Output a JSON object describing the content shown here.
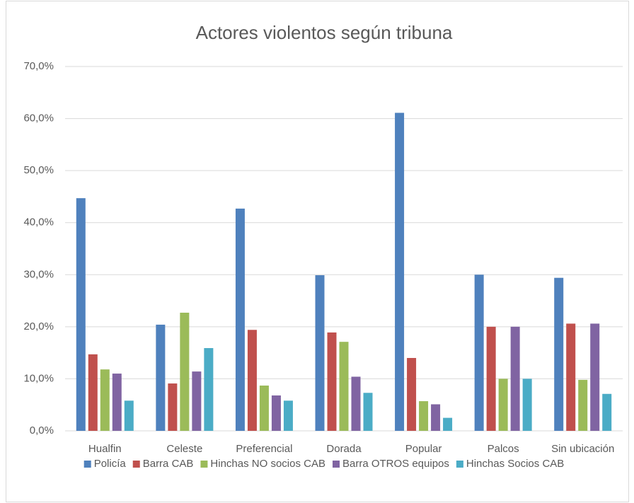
{
  "chart_data": {
    "type": "bar",
    "title": "Actores violentos según tribuna",
    "categories": [
      "Hualfin",
      "Celeste",
      "Preferencial",
      "Dorada",
      "Popular",
      "Palcos",
      "Sin ubicación"
    ],
    "series": [
      {
        "name": "Policía",
        "color": "#4f81bd",
        "values": [
          44.7,
          20.4,
          42.7,
          29.9,
          61.1,
          30.0,
          29.4
        ]
      },
      {
        "name": "Barra CAB",
        "color": "#c0504d",
        "values": [
          14.7,
          9.1,
          19.4,
          18.9,
          14.0,
          20.0,
          20.6
        ]
      },
      {
        "name": "Hinchas NO socios CAB",
        "color": "#9bbb59",
        "values": [
          11.8,
          22.7,
          8.7,
          17.1,
          5.7,
          10.0,
          9.8
        ]
      },
      {
        "name": "Barra OTROS equipos",
        "color": "#8064a2",
        "values": [
          11.0,
          11.4,
          6.8,
          10.4,
          5.1,
          20.0,
          20.6
        ]
      },
      {
        "name": "Hinchas Socios CAB",
        "color": "#4bacc6",
        "values": [
          5.8,
          15.9,
          5.8,
          7.3,
          2.5,
          10.0,
          7.1
        ]
      }
    ],
    "ylim": [
      0,
      70
    ],
    "yticks": [
      {
        "value": 0,
        "label": "0,0%"
      },
      {
        "value": 10,
        "label": "10,0%"
      },
      {
        "value": 20,
        "label": "20,0%"
      },
      {
        "value": 30,
        "label": "30,0%"
      },
      {
        "value": 40,
        "label": "40,0%"
      },
      {
        "value": 50,
        "label": "50,0%"
      },
      {
        "value": 60,
        "label": "60,0%"
      },
      {
        "value": 70,
        "label": "70,0%"
      }
    ],
    "grid": true,
    "legend": "bottom"
  }
}
